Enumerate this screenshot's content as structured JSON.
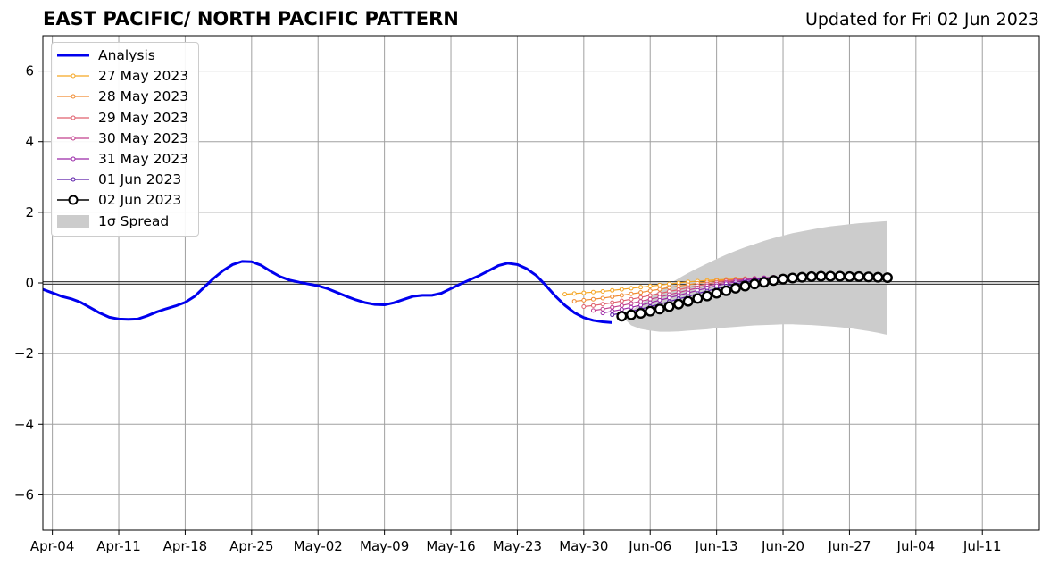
{
  "header": {
    "title": "EAST PACIFIC/ NORTH PACIFIC PATTERN",
    "updated": "Updated for Fri 02 Jun 2023"
  },
  "chart_data": {
    "type": "line",
    "title": "EAST PACIFIC/ NORTH PACIFIC PATTERN",
    "xlabel": "",
    "ylabel": "",
    "xlim": [
      "2023-04-03",
      "2023-07-17"
    ],
    "ylim": [
      -7,
      7
    ],
    "x_ticks": [
      "Apr-04",
      "Apr-11",
      "Apr-18",
      "Apr-25",
      "May-02",
      "May-09",
      "May-16",
      "May-23",
      "May-30",
      "Jun-06",
      "Jun-13",
      "Jun-20",
      "Jun-27",
      "Jul-04",
      "Jul-11"
    ],
    "x_tick_dates": [
      "2023-04-04",
      "2023-04-11",
      "2023-04-18",
      "2023-04-25",
      "2023-05-02",
      "2023-05-09",
      "2023-05-16",
      "2023-05-23",
      "2023-05-30",
      "2023-06-06",
      "2023-06-13",
      "2023-06-20",
      "2023-06-27",
      "2023-07-04",
      "2023-07-11"
    ],
    "y_ticks": [
      6,
      4,
      2,
      0,
      -2,
      -4,
      -6
    ],
    "y_tick_labels": [
      "6",
      "4",
      "2",
      "0",
      "−2",
      "−4",
      "−6"
    ],
    "grid": true,
    "zero_line": true,
    "legend_position": "top-left",
    "analysis": {
      "name": "Analysis",
      "color": "#0000ee",
      "dates": [
        "2023-04-03",
        "2023-04-04",
        "2023-04-05",
        "2023-04-06",
        "2023-04-07",
        "2023-04-08",
        "2023-04-09",
        "2023-04-10",
        "2023-04-11",
        "2023-04-12",
        "2023-04-13",
        "2023-04-14",
        "2023-04-15",
        "2023-04-16",
        "2023-04-17",
        "2023-04-18",
        "2023-04-19",
        "2023-04-20",
        "2023-04-21",
        "2023-04-22",
        "2023-04-23",
        "2023-04-24",
        "2023-04-25",
        "2023-04-26",
        "2023-04-27",
        "2023-04-28",
        "2023-04-29",
        "2023-04-30",
        "2023-05-01",
        "2023-05-02",
        "2023-05-03",
        "2023-05-04",
        "2023-05-05",
        "2023-05-06",
        "2023-05-07",
        "2023-05-08",
        "2023-05-09",
        "2023-05-10",
        "2023-05-11",
        "2023-05-12",
        "2023-05-13",
        "2023-05-14",
        "2023-05-15",
        "2023-05-16",
        "2023-05-17",
        "2023-05-18",
        "2023-05-19",
        "2023-05-20",
        "2023-05-21",
        "2023-05-22",
        "2023-05-23",
        "2023-05-24",
        "2023-05-25",
        "2023-05-26",
        "2023-05-27",
        "2023-05-28",
        "2023-05-29",
        "2023-05-30",
        "2023-05-31",
        "2023-06-01",
        "2023-06-02"
      ],
      "values": [
        -0.18,
        -0.28,
        -0.38,
        -0.45,
        -0.55,
        -0.7,
        -0.85,
        -0.97,
        -1.02,
        -1.03,
        -1.02,
        -0.93,
        -0.82,
        -0.73,
        -0.65,
        -0.55,
        -0.38,
        -0.12,
        0.13,
        0.35,
        0.52,
        0.61,
        0.6,
        0.5,
        0.33,
        0.18,
        0.08,
        0.02,
        -0.03,
        -0.08,
        -0.16,
        -0.27,
        -0.38,
        -0.48,
        -0.56,
        -0.61,
        -0.62,
        -0.56,
        -0.47,
        -0.38,
        -0.35,
        -0.35,
        -0.29,
        -0.16,
        -0.03,
        0.09,
        0.21,
        0.35,
        0.49,
        0.56,
        0.52,
        0.4,
        0.21,
        -0.07,
        -0.37,
        -0.63,
        -0.84,
        -0.98,
        -1.06,
        -1.1,
        -1.12
      ]
    },
    "forecasts": [
      {
        "name": "27 May 2023",
        "color": "#f5a623",
        "start": "2023-05-28",
        "values": [
          -0.32,
          -0.3,
          -0.28,
          -0.26,
          -0.24,
          -0.21,
          -0.18,
          -0.15,
          -0.12,
          -0.09,
          -0.06,
          -0.03,
          0.0,
          0.03,
          0.05,
          0.07,
          0.09,
          0.1,
          0.11,
          0.12
        ]
      },
      {
        "name": "28 May 2023",
        "color": "#f08a30",
        "start": "2023-05-29",
        "values": [
          -0.52,
          -0.49,
          -0.46,
          -0.43,
          -0.39,
          -0.35,
          -0.31,
          -0.27,
          -0.22,
          -0.18,
          -0.13,
          -0.09,
          -0.05,
          -0.01,
          0.03,
          0.06,
          0.08,
          0.1,
          0.12,
          0.13
        ]
      },
      {
        "name": "29 May 2023",
        "color": "#e0606e",
        "start": "2023-05-30",
        "values": [
          -0.67,
          -0.64,
          -0.6,
          -0.56,
          -0.51,
          -0.46,
          -0.41,
          -0.35,
          -0.3,
          -0.24,
          -0.19,
          -0.13,
          -0.08,
          -0.03,
          0.02,
          0.06,
          0.09,
          0.11,
          0.13,
          0.14
        ]
      },
      {
        "name": "30 May 2023",
        "color": "#c2418e",
        "start": "2023-05-31",
        "values": [
          -0.78,
          -0.74,
          -0.69,
          -0.64,
          -0.58,
          -0.52,
          -0.46,
          -0.4,
          -0.33,
          -0.27,
          -0.2,
          -0.14,
          -0.08,
          -0.03,
          0.02,
          0.07,
          0.1,
          0.13,
          0.15,
          0.16
        ]
      },
      {
        "name": "31 May 2023",
        "color": "#9a28a8",
        "start": "2023-06-01",
        "values": [
          -0.85,
          -0.8,
          -0.75,
          -0.69,
          -0.63,
          -0.56,
          -0.49,
          -0.42,
          -0.35,
          -0.28,
          -0.21,
          -0.14,
          -0.08,
          -0.02,
          0.03,
          0.08,
          0.11,
          0.14,
          0.16,
          0.17
        ]
      },
      {
        "name": "01 Jun 2023",
        "color": "#5a1aa8",
        "start": "2023-06-02",
        "values": [
          -0.9,
          -0.85,
          -0.8,
          -0.74,
          -0.67,
          -0.6,
          -0.53,
          -0.45,
          -0.38,
          -0.3,
          -0.23,
          -0.16,
          -0.09,
          -0.03,
          0.03,
          0.08,
          0.12,
          0.15,
          0.17,
          0.18
        ]
      },
      {
        "name": "02 Jun 2023",
        "color": "#000000",
        "start": "2023-06-03",
        "values": [
          -0.94,
          -0.9,
          -0.86,
          -0.8,
          -0.74,
          -0.67,
          -0.6,
          -0.52,
          -0.44,
          -0.37,
          -0.29,
          -0.22,
          -0.15,
          -0.09,
          -0.03,
          0.02,
          0.07,
          0.11,
          0.14,
          0.16,
          0.18,
          0.19,
          0.19,
          0.19,
          0.18,
          0.18,
          0.17,
          0.16,
          0.15
        ]
      }
    ],
    "spread": {
      "name": "1σ Spread",
      "color": "#cccccc",
      "start": "2023-06-03",
      "upper": [
        -0.94,
        -0.78,
        -0.6,
        -0.41,
        -0.22,
        -0.03,
        0.13,
        0.28,
        0.42,
        0.55,
        0.68,
        0.8,
        0.91,
        1.01,
        1.1,
        1.19,
        1.27,
        1.34,
        1.41,
        1.46,
        1.51,
        1.56,
        1.6,
        1.63,
        1.66,
        1.69,
        1.71,
        1.73,
        1.75
      ],
      "lower": [
        -0.94,
        -1.2,
        -1.3,
        -1.35,
        -1.38,
        -1.38,
        -1.37,
        -1.35,
        -1.33,
        -1.31,
        -1.28,
        -1.26,
        -1.24,
        -1.22,
        -1.2,
        -1.19,
        -1.18,
        -1.17,
        -1.17,
        -1.18,
        -1.19,
        -1.21,
        -1.23,
        -1.25,
        -1.28,
        -1.32,
        -1.36,
        -1.41,
        -1.47
      ]
    }
  },
  "legend": {
    "items": [
      {
        "label": "Analysis",
        "kind": "thick-line",
        "color": "#0000ee"
      },
      {
        "label": "27 May 2023",
        "kind": "marker-line",
        "color": "#f5a623"
      },
      {
        "label": "28 May 2023",
        "kind": "marker-line",
        "color": "#f08a30"
      },
      {
        "label": "29 May 2023",
        "kind": "marker-line",
        "color": "#e0606e"
      },
      {
        "label": "30 May 2023",
        "kind": "marker-line",
        "color": "#c2418e"
      },
      {
        "label": "31 May 2023",
        "kind": "marker-line",
        "color": "#9a28a8"
      },
      {
        "label": "01 Jun 2023",
        "kind": "marker-line",
        "color": "#5a1aa8"
      },
      {
        "label": "02 Jun 2023",
        "kind": "circle-line",
        "color": "#000000"
      },
      {
        "label": "1σ Spread",
        "kind": "patch",
        "color": "#cccccc"
      }
    ]
  }
}
